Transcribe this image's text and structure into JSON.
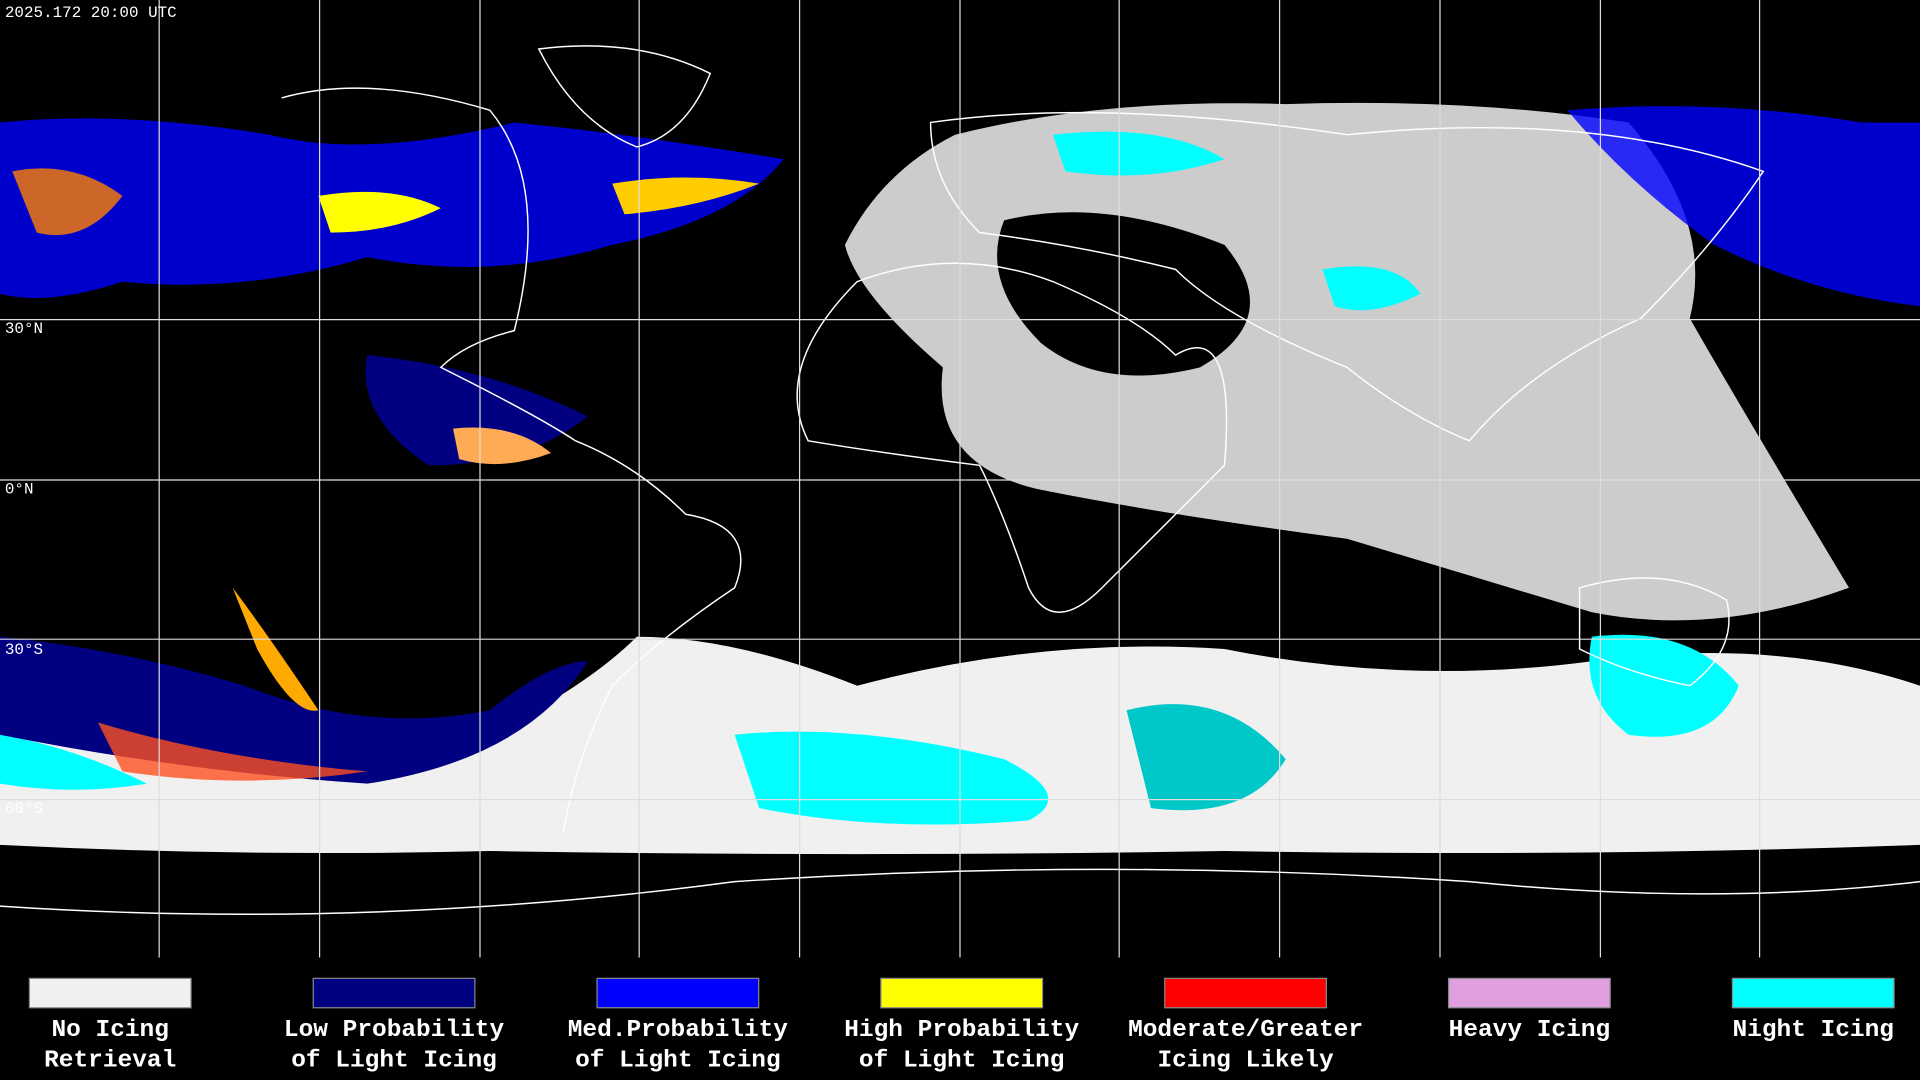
{
  "header": {
    "timestamp": "2025.172 20:00 UTC"
  },
  "map": {
    "lat_labels": [
      "30°N",
      "0°N",
      "30°S",
      "60°S"
    ]
  },
  "legend": [
    {
      "lines": [
        "No Icing",
        "Retrieval"
      ],
      "color": "#f0f0f0"
    },
    {
      "lines": [
        "Low Probability",
        "of Light Icing"
      ],
      "color": "#000080"
    },
    {
      "lines": [
        "Med.Probability",
        "of Light Icing"
      ],
      "color": "#0000ff"
    },
    {
      "lines": [
        "High Probability",
        "of Light Icing"
      ],
      "color": "#ffff00"
    },
    {
      "lines": [
        "Moderate/Greater",
        "Icing Likely"
      ],
      "color": "#ff0000"
    },
    {
      "lines": [
        "Heavy Icing"
      ],
      "color": "#e0a0e0"
    },
    {
      "lines": [
        "Night Icing"
      ],
      "color": "#00ffff"
    }
  ]
}
